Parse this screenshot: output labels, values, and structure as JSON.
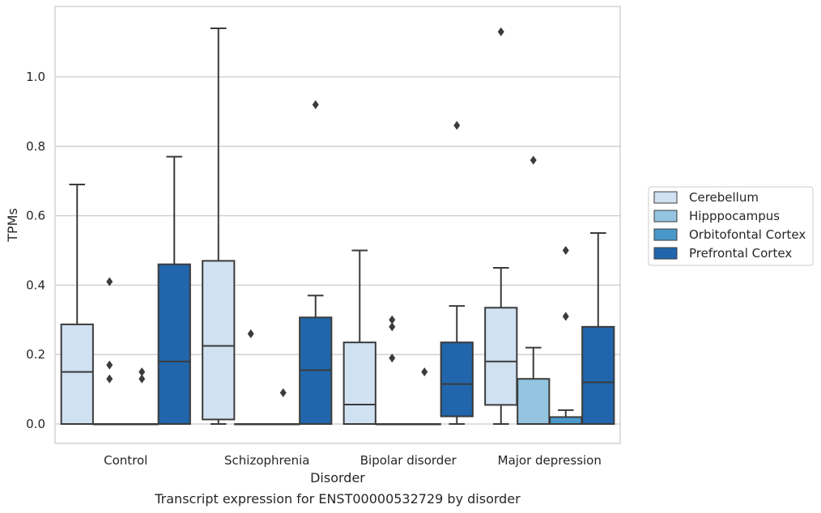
{
  "chart_data": {
    "type": "box",
    "title": "",
    "xlabel": "Disorder",
    "ylabel": "TPMs",
    "caption": "Transcript expression for ENST00000532729 by disorder",
    "ylim": [
      -0.055,
      1.2
    ],
    "yticks": [
      "0.0",
      "0.2",
      "0.4",
      "0.6",
      "0.8",
      "1.0"
    ],
    "grid": "horizontal",
    "legend_position": "right",
    "categories": [
      "Control",
      "Schizophrenia",
      "Bipolar disorder",
      "Major depression"
    ],
    "series": [
      {
        "name": "Cerebellum",
        "color": "#d0e1f2",
        "boxes": [
          {
            "q1": 0.0,
            "median": 0.15,
            "q3": 0.287,
            "whisker_low": 0.0,
            "whisker_high": 0.69,
            "outliers": []
          },
          {
            "q1": 0.013,
            "median": 0.225,
            "q3": 0.47,
            "whisker_low": 0.0,
            "whisker_high": 1.14,
            "outliers": []
          },
          {
            "q1": 0.0,
            "median": 0.056,
            "q3": 0.235,
            "whisker_low": 0.0,
            "whisker_high": 0.5,
            "outliers": []
          },
          {
            "q1": 0.055,
            "median": 0.18,
            "q3": 0.335,
            "whisker_low": 0.0,
            "whisker_high": 0.45,
            "outliers": [
              1.13
            ]
          }
        ]
      },
      {
        "name": "Hipppocampus",
        "color": "#94c4df",
        "boxes": [
          {
            "q1": 0.0,
            "median": 0.0,
            "q3": 0.0,
            "whisker_low": 0.0,
            "whisker_high": 0.0,
            "outliers": [
              0.41,
              0.17,
              0.13
            ]
          },
          {
            "q1": 0.0,
            "median": 0.0,
            "q3": 0.0,
            "whisker_low": 0.0,
            "whisker_high": 0.0,
            "outliers": [
              0.26
            ]
          },
          {
            "q1": 0.0,
            "median": 0.0,
            "q3": 0.0,
            "whisker_low": 0.0,
            "whisker_high": 0.0,
            "outliers": [
              0.3,
              0.28,
              0.19
            ]
          },
          {
            "q1": 0.0,
            "median": 0.0,
            "q3": 0.13,
            "whisker_low": 0.0,
            "whisker_high": 0.22,
            "outliers": [
              0.76
            ]
          }
        ]
      },
      {
        "name": "Orbitofontal Cortex",
        "color": "#4a98c9",
        "boxes": [
          {
            "q1": 0.0,
            "median": 0.0,
            "q3": 0.0,
            "whisker_low": 0.0,
            "whisker_high": 0.0,
            "outliers": [
              0.15,
              0.13
            ]
          },
          {
            "q1": 0.0,
            "median": 0.0,
            "q3": 0.0,
            "whisker_low": 0.0,
            "whisker_high": 0.0,
            "outliers": [
              0.09
            ]
          },
          {
            "q1": 0.0,
            "median": 0.0,
            "q3": 0.0,
            "whisker_low": 0.0,
            "whisker_high": 0.0,
            "outliers": [
              0.15
            ]
          },
          {
            "q1": 0.0,
            "median": 0.0,
            "q3": 0.02,
            "whisker_low": 0.0,
            "whisker_high": 0.04,
            "outliers": [
              0.5,
              0.31
            ]
          }
        ]
      },
      {
        "name": "Prefrontal Cortex",
        "color": "#2166ac",
        "boxes": [
          {
            "q1": 0.0,
            "median": 0.18,
            "q3": 0.46,
            "whisker_low": 0.0,
            "whisker_high": 0.77,
            "outliers": []
          },
          {
            "q1": 0.0,
            "median": 0.155,
            "q3": 0.307,
            "whisker_low": 0.0,
            "whisker_high": 0.37,
            "outliers": [
              0.92
            ]
          },
          {
            "q1": 0.022,
            "median": 0.115,
            "q3": 0.235,
            "whisker_low": 0.0,
            "whisker_high": 0.34,
            "outliers": [
              0.86
            ]
          },
          {
            "q1": 0.0,
            "median": 0.12,
            "q3": 0.28,
            "whisker_low": 0.0,
            "whisker_high": 0.55,
            "outliers": []
          }
        ]
      }
    ]
  }
}
